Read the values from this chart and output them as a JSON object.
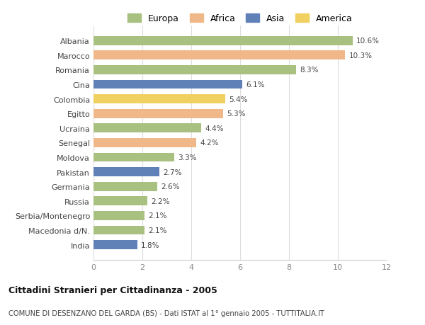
{
  "countries": [
    "Albania",
    "Marocco",
    "Romania",
    "Cina",
    "Colombia",
    "Egitto",
    "Ucraina",
    "Senegal",
    "Moldova",
    "Pakistan",
    "Germania",
    "Russia",
    "Serbia/Montenegro",
    "Macedonia d/N.",
    "India"
  ],
  "values": [
    10.6,
    10.3,
    8.3,
    6.1,
    5.4,
    5.3,
    4.4,
    4.2,
    3.3,
    2.7,
    2.6,
    2.2,
    2.1,
    2.1,
    1.8
  ],
  "continents": [
    "Europa",
    "Africa",
    "Europa",
    "Asia",
    "America",
    "Africa",
    "Europa",
    "Africa",
    "Europa",
    "Asia",
    "Europa",
    "Europa",
    "Europa",
    "Europa",
    "Asia"
  ],
  "colors": {
    "Europa": "#a8c080",
    "Africa": "#f0b888",
    "Asia": "#6080b8",
    "America": "#f0d060"
  },
  "legend_order": [
    "Europa",
    "Africa",
    "Asia",
    "America"
  ],
  "title1": "Cittadini Stranieri per Cittadinanza - 2005",
  "title2": "COMUNE DI DESENZANO DEL GARDA (BS) - Dati ISTAT al 1° gennaio 2005 - TUTTITALIA.IT",
  "xlim": [
    0,
    12
  ],
  "xticks": [
    0,
    2,
    4,
    6,
    8,
    10,
    12
  ],
  "background_color": "#ffffff",
  "bar_height": 0.62,
  "grid_color": "#dddddd"
}
